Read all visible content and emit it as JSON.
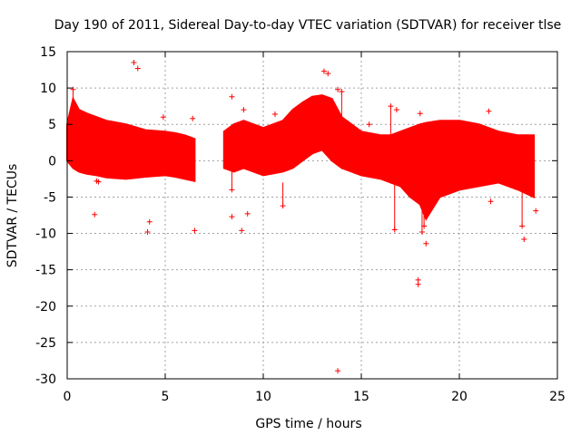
{
  "chart_data": {
    "type": "scatter",
    "title": "Day 190 of 2011, Sidereal Day-to-day VTEC variation (SDTVAR) for receiver tlse",
    "xlabel": "GPS time / hours",
    "ylabel": "SDTVAR / TECUs",
    "xlim": [
      0,
      25
    ],
    "ylim": [
      -30,
      15
    ],
    "xticks": [
      0,
      5,
      10,
      15,
      20,
      25
    ],
    "yticks": [
      15,
      10,
      5,
      0,
      -5,
      -10,
      -15,
      -20,
      -25,
      -30
    ],
    "grid": true,
    "color": "#ff0000",
    "marker": "+",
    "band_segments": [
      {
        "x": [
          0.0,
          0.3,
          0.6,
          1.0,
          1.5,
          2.0,
          3.0,
          4.0,
          5.0,
          5.5,
          6.0,
          6.5
        ],
        "upper": [
          5.0,
          8.5,
          7.0,
          6.5,
          6.0,
          5.5,
          5.0,
          4.2,
          4.0,
          3.8,
          3.5,
          3.0
        ],
        "lower": [
          0.0,
          -1.0,
          -1.5,
          -1.8,
          -2.0,
          -2.3,
          -2.5,
          -2.2,
          -2.0,
          -2.2,
          -2.5,
          -2.8
        ]
      },
      {
        "x": [
          8.0,
          8.5,
          9.0,
          10.0,
          11.0,
          11.5,
          12.0,
          12.5,
          13.0,
          13.5,
          14.0,
          15.0,
          16.0,
          16.5
        ],
        "upper": [
          4.0,
          5.0,
          5.5,
          4.5,
          5.5,
          7.0,
          8.0,
          8.8,
          9.0,
          8.5,
          6.0,
          4.0,
          3.5,
          3.5
        ],
        "lower": [
          -1.0,
          -1.5,
          -1.0,
          -2.0,
          -1.5,
          -1.0,
          0.0,
          1.0,
          1.5,
          0.0,
          -1.0,
          -2.0,
          -2.5,
          -3.0
        ]
      },
      {
        "x": [
          16.5,
          17.0,
          17.5,
          18.0,
          18.3,
          19.0,
          20.0,
          21.0,
          22.0,
          23.0,
          23.8
        ],
        "upper": [
          3.5,
          4.0,
          4.5,
          5.0,
          5.2,
          5.5,
          5.5,
          5.0,
          4.0,
          3.5,
          3.5
        ],
        "lower": [
          -3.0,
          -3.5,
          -5.0,
          -6.0,
          -8.0,
          -5.0,
          -4.0,
          -3.5,
          -3.0,
          -4.0,
          -5.0
        ]
      }
    ],
    "outliers": [
      {
        "x": 3.4,
        "y": 13.5
      },
      {
        "x": 3.6,
        "y": 12.7
      },
      {
        "x": 13.1,
        "y": 12.3
      },
      {
        "x": 13.3,
        "y": 12.0
      },
      {
        "x": 13.8,
        "y": 9.8
      },
      {
        "x": 10.6,
        "y": 6.4
      },
      {
        "x": 1.4,
        "y": -7.4
      },
      {
        "x": 1.5,
        "y": -2.8
      },
      {
        "x": 1.6,
        "y": -2.9
      },
      {
        "x": 4.2,
        "y": -8.4
      },
      {
        "x": 4.1,
        "y": -9.8
      },
      {
        "x": 6.5,
        "y": -9.6
      },
      {
        "x": 8.4,
        "y": -7.7
      },
      {
        "x": 9.2,
        "y": -7.3
      },
      {
        "x": 8.9,
        "y": -9.6
      },
      {
        "x": 21.6,
        "y": -5.6
      },
      {
        "x": 23.3,
        "y": -10.8
      },
      {
        "x": 23.9,
        "y": -6.9
      },
      {
        "x": 18.3,
        "y": -11.4
      },
      {
        "x": 17.9,
        "y": -16.4
      },
      {
        "x": 17.9,
        "y": -17.0
      },
      {
        "x": 13.8,
        "y": -28.9
      },
      {
        "x": 18.0,
        "y": 6.5
      },
      {
        "x": 16.8,
        "y": 7.0
      },
      {
        "x": 15.4,
        "y": 5.0
      },
      {
        "x": 21.5,
        "y": 6.8
      },
      {
        "x": 4.9,
        "y": 6.0
      },
      {
        "x": 6.4,
        "y": 5.8
      },
      {
        "x": 8.4,
        "y": 8.8
      },
      {
        "x": 9.0,
        "y": 7.0
      }
    ],
    "spikes": [
      {
        "x": 11.0,
        "y": [
          -3,
          -6.2
        ]
      },
      {
        "x": 12.2,
        "y": [
          4,
          6.0
        ]
      },
      {
        "x": 16.7,
        "y": [
          -3,
          -9.5
        ]
      },
      {
        "x": 18.1,
        "y": [
          -5,
          -9.8
        ]
      },
      {
        "x": 18.2,
        "y": [
          -5,
          -9.0
        ]
      },
      {
        "x": 23.2,
        "y": [
          -3,
          -9.0
        ]
      },
      {
        "x": 8.4,
        "y": [
          -1,
          -4.0
        ]
      },
      {
        "x": 0.3,
        "y": [
          5,
          9.8
        ]
      },
      {
        "x": 14.0,
        "y": [
          3,
          9.5
        ]
      },
      {
        "x": 16.5,
        "y": [
          2,
          7.5
        ]
      }
    ]
  }
}
